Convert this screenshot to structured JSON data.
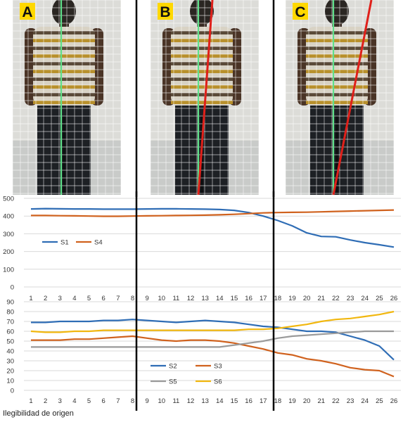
{
  "panels": [
    {
      "letter": "A",
      "red_line": false
    },
    {
      "letter": "B",
      "red_line": true
    },
    {
      "letter": "C",
      "red_line": true
    }
  ],
  "colors": {
    "label_bg": "#ffd800",
    "green_line": "#5fe08a",
    "red_line": "#e0201a",
    "grid": "#ffffff",
    "wall": "#dcdcd8",
    "floor": "#c9cbc9"
  },
  "source_text": "Ilegibilidad de origen",
  "chart_data": [
    {
      "type": "line",
      "categories": [
        "1",
        "2",
        "3",
        "4",
        "5",
        "6",
        "7",
        "8",
        "9",
        "10",
        "11",
        "12",
        "13",
        "14",
        "15",
        "16",
        "17",
        "18",
        "19",
        "20",
        "21",
        "22",
        "23",
        "24",
        "25",
        "26"
      ],
      "ylim": [
        0,
        500
      ],
      "yticks": [
        "0",
        "100",
        "200",
        "300",
        "400",
        "500"
      ],
      "grid": true,
      "legend_position": "left",
      "series": [
        {
          "name": "S1",
          "color": "#2f6db5",
          "values": [
            440,
            442,
            441,
            440,
            440,
            439,
            439,
            439,
            440,
            441,
            441,
            440,
            439,
            437,
            432,
            420,
            400,
            375,
            345,
            305,
            285,
            283,
            265,
            250,
            238,
            225
          ]
        },
        {
          "name": "S4",
          "color": "#d0621e",
          "values": [
            403,
            403,
            402,
            401,
            400,
            399,
            399,
            400,
            401,
            402,
            403,
            404,
            405,
            407,
            410,
            414,
            418,
            420,
            421,
            422,
            424,
            426,
            428,
            430,
            432,
            434
          ]
        }
      ]
    },
    {
      "type": "line",
      "categories": [
        "1",
        "2",
        "3",
        "4",
        "5",
        "6",
        "7",
        "8",
        "9",
        "10",
        "11",
        "12",
        "13",
        "14",
        "15",
        "16",
        "17",
        "18",
        "19",
        "20",
        "21",
        "22",
        "23",
        "24",
        "25",
        "26"
      ],
      "ylim": [
        0,
        90
      ],
      "yticks": [
        "0",
        "10",
        "20",
        "30",
        "40",
        "50",
        "60",
        "70",
        "80",
        "90"
      ],
      "grid": true,
      "legend_position": "bottom-left",
      "series": [
        {
          "name": "S2",
          "color": "#2f6db5",
          "values": [
            69,
            69,
            70,
            70,
            70,
            71,
            71,
            72,
            71,
            70,
            69,
            70,
            71,
            70,
            69,
            67,
            65,
            64,
            62,
            60,
            60,
            59,
            55,
            51,
            45,
            31
          ]
        },
        {
          "name": "S3",
          "color": "#d0621e",
          "values": [
            51,
            51,
            51,
            52,
            52,
            53,
            54,
            55,
            53,
            51,
            50,
            51,
            51,
            50,
            48,
            45,
            42,
            38,
            36,
            32,
            30,
            27,
            23,
            21,
            20,
            14
          ]
        },
        {
          "name": "S5",
          "color": "#9a9a9a",
          "values": [
            44,
            44,
            44,
            44,
            44,
            44,
            44,
            44,
            44,
            44,
            44,
            44,
            44,
            44,
            46,
            48,
            50,
            53,
            55,
            56,
            57,
            58,
            59,
            60,
            60,
            60
          ]
        },
        {
          "name": "S6",
          "color": "#f1b70f",
          "values": [
            60,
            59,
            59,
            60,
            60,
            61,
            61,
            61,
            61,
            61,
            61,
            61,
            61,
            61,
            61,
            62,
            62,
            63,
            65,
            67,
            70,
            72,
            73,
            75,
            77,
            80
          ]
        }
      ]
    }
  ]
}
